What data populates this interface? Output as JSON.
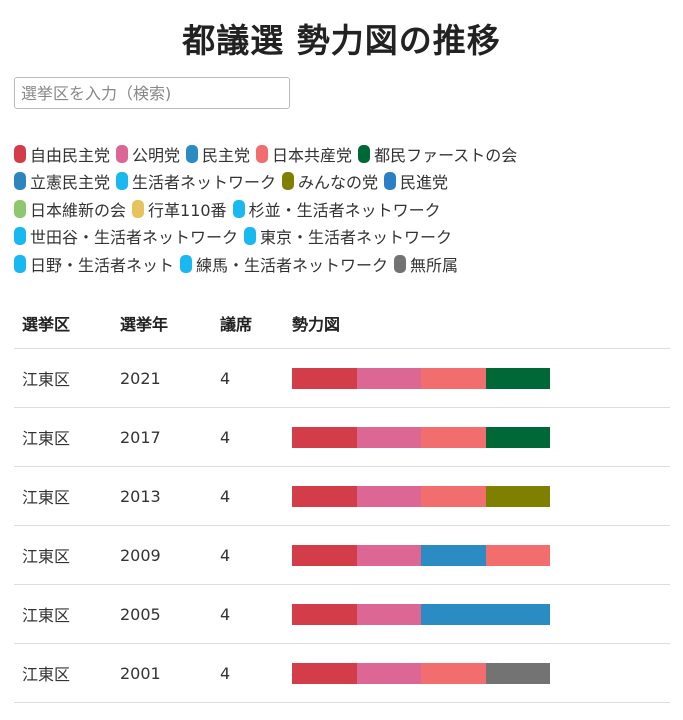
{
  "title": "都議選 勢力図の推移",
  "search": {
    "placeholder": "選挙区を入力（検索)",
    "value": ""
  },
  "parties": {
    "jimin": {
      "label": "自由民主党",
      "color": "#d33d49"
    },
    "komei": {
      "label": "公明党",
      "color": "#dc6694"
    },
    "minshu": {
      "label": "民主党",
      "color": "#2b8cc4"
    },
    "kyosan": {
      "label": "日本共産党",
      "color": "#f26e6e"
    },
    "tomin": {
      "label": "都民ファーストの会",
      "color": "#006837"
    },
    "rikken": {
      "label": "立憲民主党",
      "color": "#2f84c0"
    },
    "seikatsu": {
      "label": "生活者ネットワーク",
      "color": "#1ab8f0"
    },
    "minna": {
      "label": "みんなの党",
      "color": "#7f7f00"
    },
    "minshin": {
      "label": "民進党",
      "color": "#2b7fc4"
    },
    "ishin": {
      "label": "日本維新の会",
      "color": "#8dc86e"
    },
    "gyokaku": {
      "label": "行革110番",
      "color": "#e6c35c"
    },
    "suginami": {
      "label": "杉並・生活者ネットワーク",
      "color": "#1ab8f0"
    },
    "setagaya": {
      "label": "世田谷・生活者ネットワーク",
      "color": "#1ab8f0"
    },
    "tokyo": {
      "label": "東京・生活者ネットワーク",
      "color": "#1ab8f0"
    },
    "hino": {
      "label": "日野・生活者ネット",
      "color": "#1ab8f0"
    },
    "nerima": {
      "label": "練馬・生活者ネットワーク",
      "color": "#1ab8f0"
    },
    "mushozoku": {
      "label": "無所属",
      "color": "#737373"
    }
  },
  "legend_rows": [
    [
      "jimin",
      "komei",
      "minshu",
      "kyosan",
      "tomin"
    ],
    [
      "rikken",
      "seikatsu",
      "minna",
      "minshin"
    ],
    [
      "ishin",
      "gyokaku",
      "suginami"
    ],
    [
      "setagaya",
      "tokyo"
    ],
    [
      "hino",
      "nerima",
      "mushozoku"
    ]
  ],
  "table": {
    "headers": {
      "district": "選挙区",
      "year": "選挙年",
      "seats": "議席",
      "power": "勢力図"
    },
    "rows": [
      {
        "district": "江東区",
        "year": "2021",
        "seats": "4",
        "parties": [
          "jimin",
          "komei",
          "kyosan",
          "tomin"
        ]
      },
      {
        "district": "江東区",
        "year": "2017",
        "seats": "4",
        "parties": [
          "jimin",
          "komei",
          "kyosan",
          "tomin"
        ]
      },
      {
        "district": "江東区",
        "year": "2013",
        "seats": "4",
        "parties": [
          "jimin",
          "komei",
          "kyosan",
          "minna"
        ]
      },
      {
        "district": "江東区",
        "year": "2009",
        "seats": "4",
        "parties": [
          "jimin",
          "komei",
          "minshu",
          "kyosan"
        ]
      },
      {
        "district": "江東区",
        "year": "2005",
        "seats": "4",
        "parties": [
          "jimin",
          "komei",
          "minshu",
          "minshu"
        ]
      },
      {
        "district": "江東区",
        "year": "2001",
        "seats": "4",
        "parties": [
          "jimin",
          "komei",
          "kyosan",
          "mushozoku"
        ]
      }
    ]
  }
}
